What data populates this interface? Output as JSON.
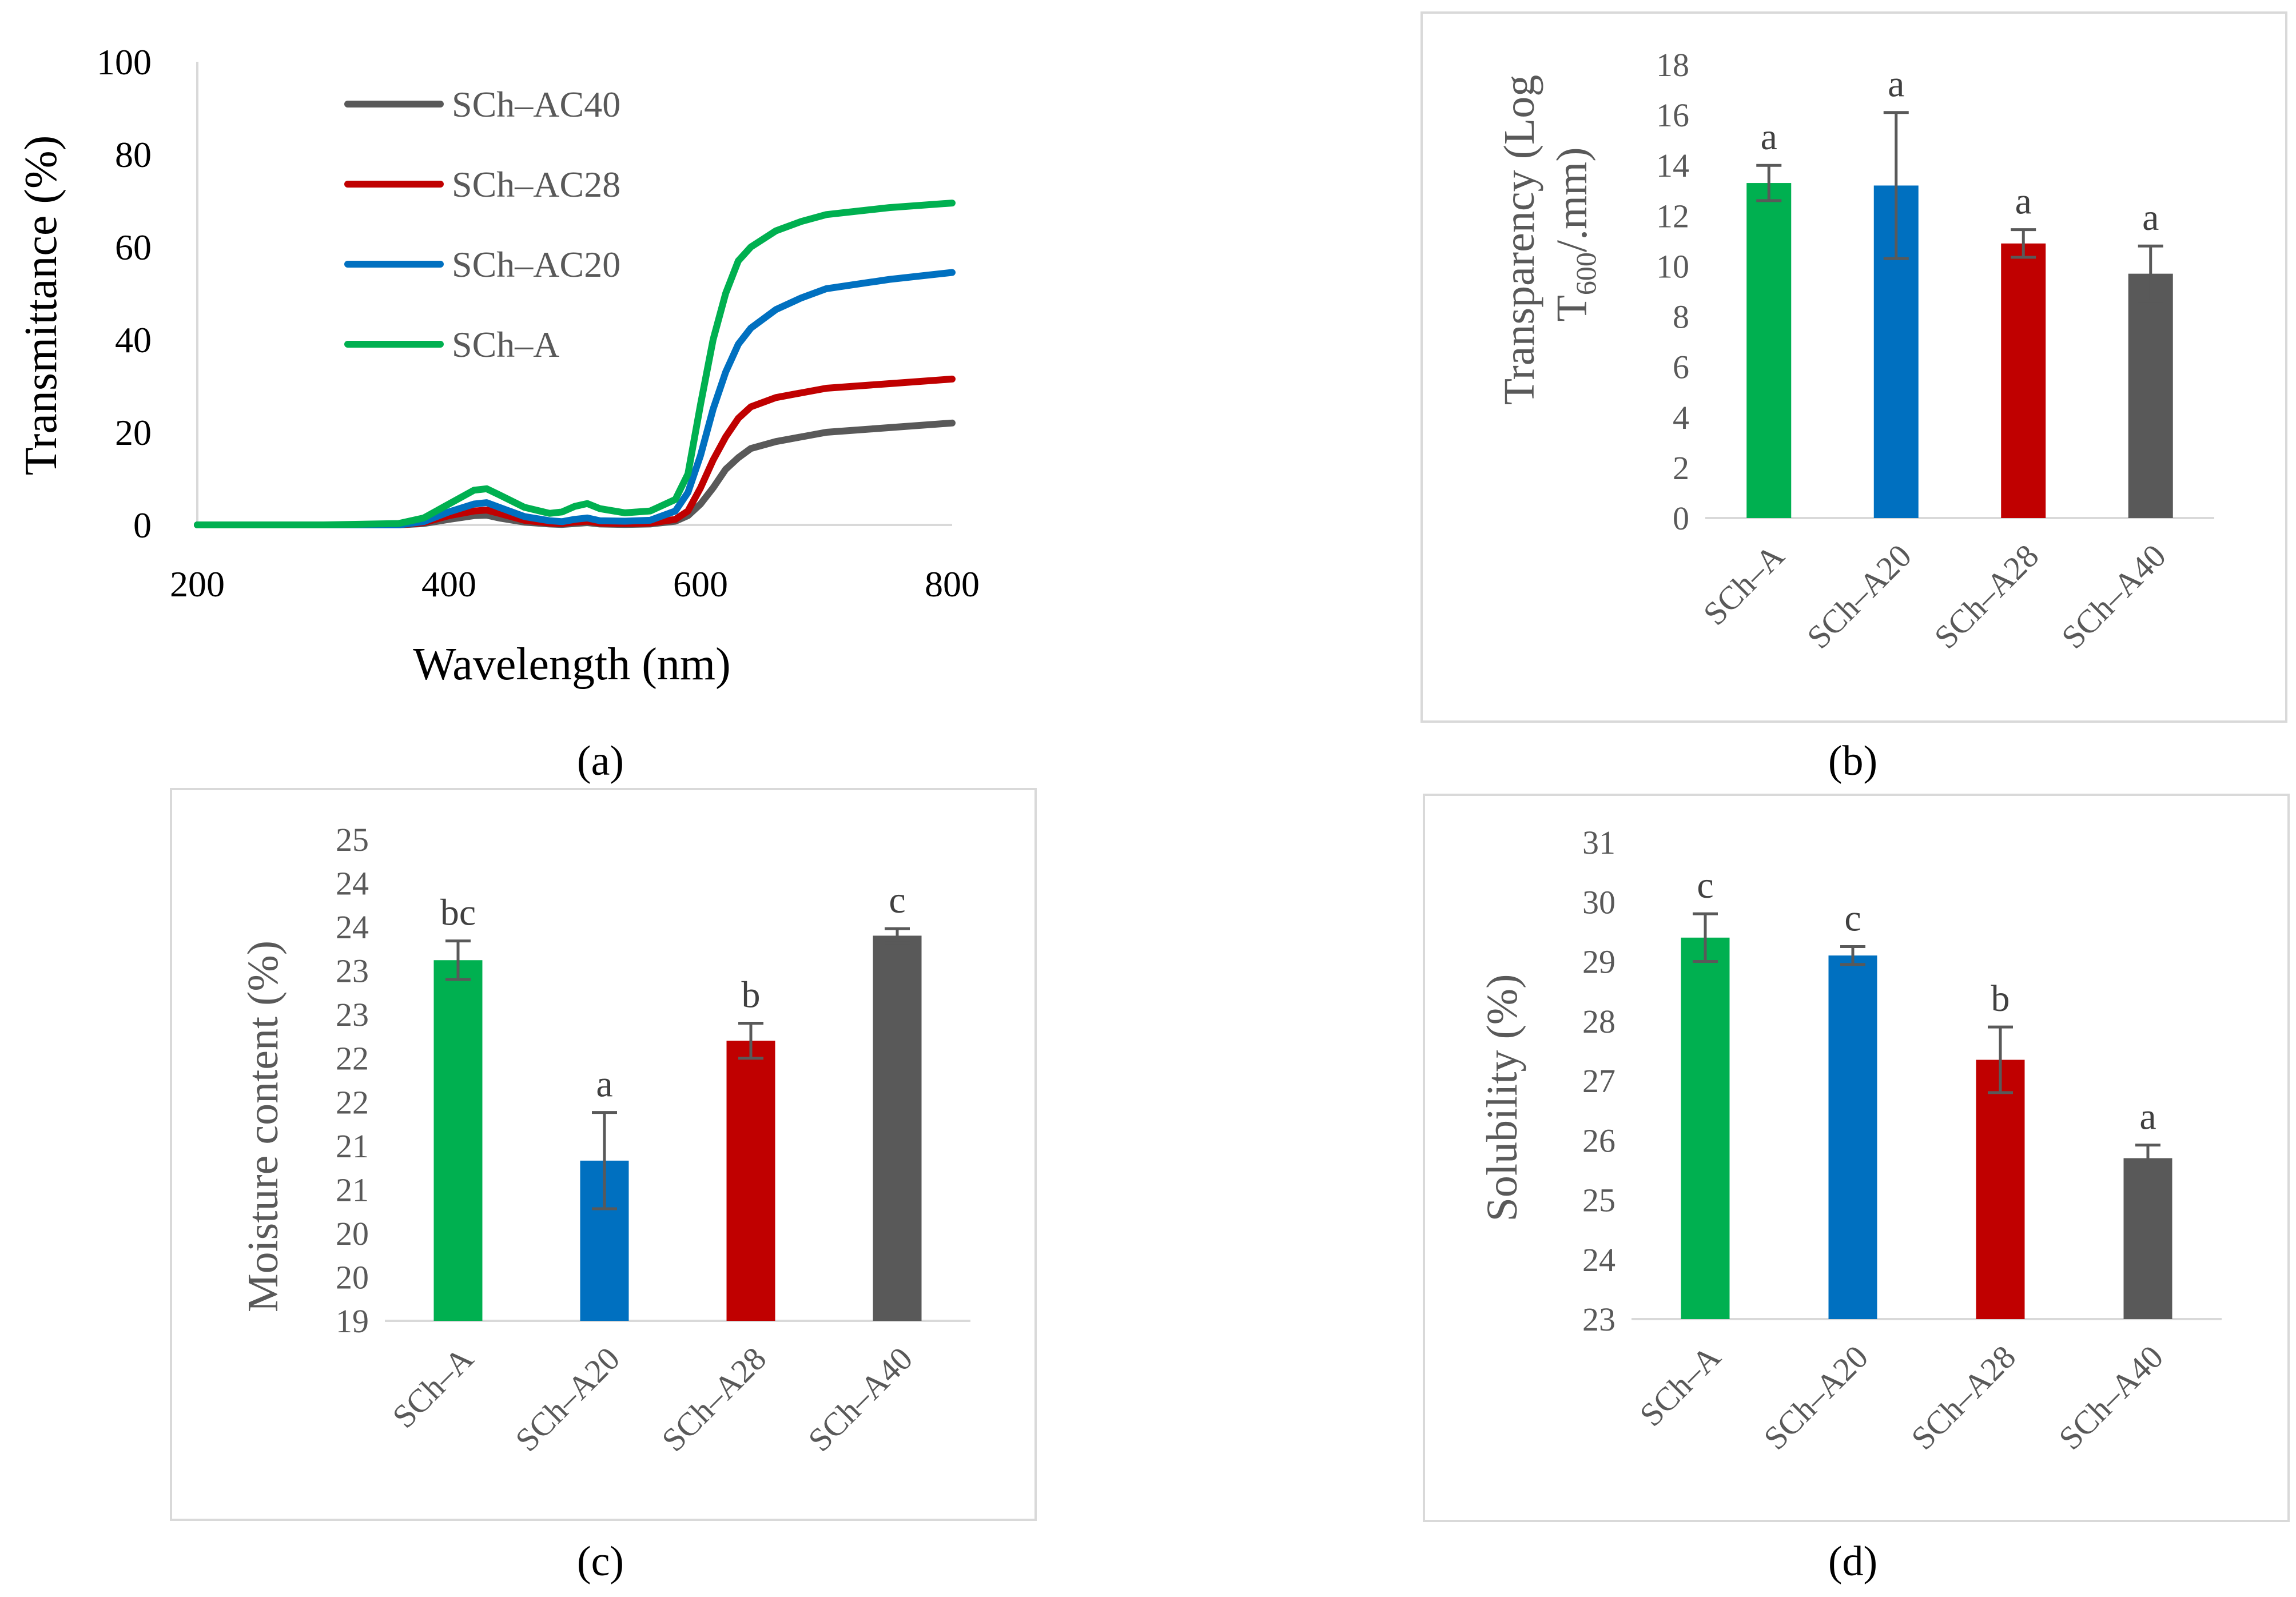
{
  "colors": {
    "green": "#00b050",
    "blue": "#0070c0",
    "red": "#c00000",
    "gray": "#595959",
    "axis_text": "#595959",
    "axis_line": "#d9d9d9",
    "error_bar": "#595959"
  },
  "panel_labels": {
    "a": "(a)",
    "b": "(b)",
    "c": "(c)",
    "d": "(d)"
  },
  "chart_data": [
    {
      "id": "a",
      "type": "line",
      "xlabel": "Wavelength (nm)",
      "ylabel": "Transmittance (%)",
      "xlim": [
        200,
        800
      ],
      "ylim": [
        0,
        100
      ],
      "xticks": [
        200,
        400,
        600,
        800
      ],
      "yticks": [
        0,
        20,
        40,
        60,
        80,
        100
      ],
      "grid": false,
      "legend_position": "top-left",
      "x": [
        200,
        300,
        360,
        380,
        400,
        420,
        430,
        440,
        460,
        480,
        490,
        500,
        510,
        520,
        540,
        560,
        580,
        590,
        600,
        610,
        620,
        630,
        640,
        660,
        680,
        700,
        750,
        800
      ],
      "series": [
        {
          "name": "SCh–AC40",
          "color": "#595959",
          "values": [
            0,
            0,
            0,
            0.3,
            1.2,
            2.0,
            2.1,
            1.5,
            0.6,
            0.2,
            0.1,
            0.3,
            0.5,
            0.2,
            0.1,
            0.2,
            0.8,
            2,
            4.5,
            8,
            12,
            14.5,
            16.5,
            18,
            19,
            20,
            21,
            22
          ]
        },
        {
          "name": "SCh–AC28",
          "color": "#c00000",
          "values": [
            0,
            0,
            0,
            0.5,
            2.0,
            3.0,
            3.2,
            2.5,
            1.0,
            0.4,
            0.3,
            0.6,
            0.8,
            0.4,
            0.3,
            0.4,
            1.2,
            3,
            8,
            14,
            19,
            23,
            25.5,
            27.5,
            28.5,
            29.5,
            30.5,
            31.5
          ]
        },
        {
          "name": "SCh–AC20",
          "color": "#0070c0",
          "values": [
            0,
            0,
            0,
            0.7,
            2.8,
            4.5,
            4.8,
            3.8,
            1.8,
            0.9,
            0.7,
            1.2,
            1.5,
            0.9,
            0.8,
            1.0,
            3,
            7,
            15,
            25,
            33,
            39,
            42.5,
            46.5,
            49,
            51,
            53,
            54.5
          ]
        },
        {
          "name": "SCh–A",
          "color": "#00b050",
          "values": [
            0,
            0,
            0.3,
            1.5,
            4.5,
            7.5,
            7.8,
            6.5,
            3.8,
            2.5,
            2.8,
            4.0,
            4.6,
            3.5,
            2.6,
            3.0,
            5.5,
            11,
            26,
            40,
            50,
            57,
            60,
            63.5,
            65.5,
            67,
            68.5,
            69.5
          ]
        }
      ]
    },
    {
      "id": "b",
      "type": "bar",
      "ylabel_line1": "Transparency (Log",
      "ylabel_line2_pre": "T",
      "ylabel_line2_sub": "600",
      "ylabel_line2_post": "/.mm)",
      "categories": [
        "SCh–A",
        "SCh–A20",
        "SCh–A28",
        "SCh–A40"
      ],
      "values": [
        13.3,
        13.2,
        10.9,
        9.7
      ],
      "errors": [
        0.7,
        2.9,
        0.55,
        1.1
      ],
      "letters": [
        "a",
        "a",
        "a",
        "a"
      ],
      "colors": [
        "#00b050",
        "#0070c0",
        "#c00000",
        "#595959"
      ],
      "ylim": [
        0,
        18
      ],
      "yticks": [
        0,
        2,
        4,
        6,
        8,
        10,
        12,
        14,
        16,
        18
      ],
      "grid": false
    },
    {
      "id": "c",
      "type": "bar",
      "ylabel": "Moisture content (%)",
      "categories": [
        "SCh–A",
        "SCh–A20",
        "SCh–A28",
        "SCh–A40"
      ],
      "values": [
        23.62,
        21.33,
        22.7,
        23.9
      ],
      "errors": [
        0.22,
        0.55,
        0.2,
        0.08
      ],
      "letters": [
        "bc",
        "a",
        "b",
        "c"
      ],
      "colors": [
        "#00b050",
        "#0070c0",
        "#c00000",
        "#595959"
      ],
      "ylim": [
        19.5,
        25
      ],
      "ytick_values": [
        19.5,
        20,
        20.5,
        21,
        21.5,
        22,
        22.5,
        23,
        23.5,
        24,
        24.5,
        25
      ],
      "ytick_labels": [
        "19",
        "20",
        "20",
        "21",
        "21",
        "22",
        "22",
        "23",
        "23",
        "24",
        "24",
        "25"
      ],
      "grid": false
    },
    {
      "id": "d",
      "type": "bar",
      "ylabel": "Solubility (%)",
      "categories": [
        "SCh–A",
        "SCh–A20",
        "SCh–A28",
        "SCh–A40"
      ],
      "values": [
        29.4,
        29.1,
        27.35,
        25.7
      ],
      "errors": [
        0.4,
        0.15,
        0.55,
        0.22
      ],
      "letters": [
        "c",
        "c",
        "b",
        "a"
      ],
      "colors": [
        "#00b050",
        "#0070c0",
        "#c00000",
        "#595959"
      ],
      "ylim": [
        23,
        31
      ],
      "yticks": [
        23,
        24,
        25,
        26,
        27,
        28,
        29,
        30,
        31
      ],
      "grid": false
    }
  ]
}
